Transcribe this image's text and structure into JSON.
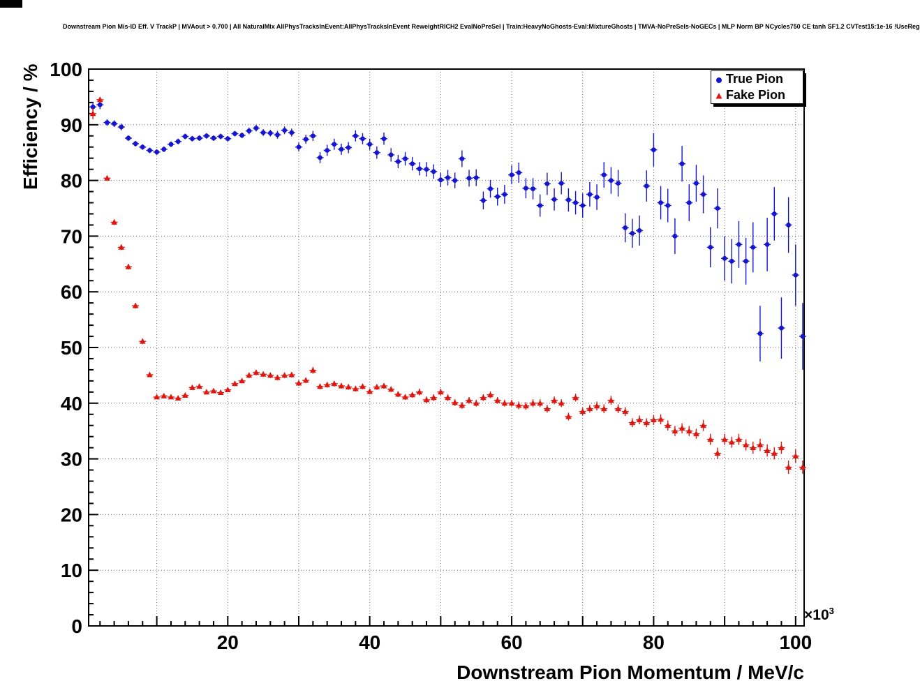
{
  "chart_data": {
    "type": "scatter",
    "title": "Downstream Pion Mis-ID Eff. V TrackP | MVAout > 0.700 | All NaturalMix AllPhysTracksInEvent:AllPhysTracksInEvent ReweightRICH2 EvalNoPreSel | Train:HeavyNoGhosts-Eval:MixtureGhosts | TMVA-NoPreSels-NoGECs | MLP Norm BP NCycles750 CE tanh SF1.2 CVTest15:1e-16 !UseReg",
    "xlabel": "Downstream Pion Momentum / MeV/c",
    "ylabel": "Efficiency / %",
    "x_mult_base": "×10",
    "x_mult_exp": "3",
    "x_units_note": "x axis values are in units of 10^3 MeV/c",
    "xlim": [
      0.4,
      101.2
    ],
    "ylim": [
      0,
      100
    ],
    "xticks": [
      20,
      40,
      60,
      80,
      100
    ],
    "yticks": [
      0,
      10,
      20,
      30,
      40,
      50,
      60,
      70,
      80,
      90,
      100
    ],
    "xgrid": [
      10,
      20,
      30,
      40,
      50,
      60,
      70,
      80,
      90,
      100
    ],
    "ygrid": [
      10,
      20,
      30,
      40,
      50,
      60,
      70,
      80,
      90
    ],
    "grid": "dotted",
    "legend": {
      "position": "top-right",
      "entries": [
        {
          "label": "True Pion",
          "marker": "circle"
        },
        {
          "label": "Fake Pion",
          "marker": "triangle"
        }
      ]
    },
    "series": [
      {
        "name": "True Pion",
        "marker": "circle",
        "color": "#1515cf",
        "points": [
          [
            1,
            93.2,
            0.8
          ],
          [
            2,
            93.6,
            0.8
          ],
          [
            3,
            90.4,
            0.6
          ],
          [
            4,
            90.2,
            0.6
          ],
          [
            5,
            89.6,
            0.6
          ],
          [
            6,
            87.6,
            0.5
          ],
          [
            7,
            86.6,
            0.5
          ],
          [
            8,
            86.0,
            0.5
          ],
          [
            9,
            85.4,
            0.5
          ],
          [
            10,
            85.1,
            0.5
          ],
          [
            11,
            85.6,
            0.5
          ],
          [
            12,
            86.5,
            0.5
          ],
          [
            13,
            87.0,
            0.5
          ],
          [
            14,
            87.9,
            0.5
          ],
          [
            15,
            87.5,
            0.5
          ],
          [
            16,
            87.6,
            0.5
          ],
          [
            17,
            88.0,
            0.5
          ],
          [
            18,
            87.6,
            0.5
          ],
          [
            19,
            87.9,
            0.5
          ],
          [
            20,
            87.5,
            0.5
          ],
          [
            21,
            88.4,
            0.5
          ],
          [
            22,
            88.1,
            0.5
          ],
          [
            23,
            88.9,
            0.6
          ],
          [
            24,
            89.4,
            0.6
          ],
          [
            25,
            88.6,
            0.6
          ],
          [
            26,
            88.5,
            0.6
          ],
          [
            27,
            88.2,
            0.7
          ],
          [
            28,
            89.0,
            0.7
          ],
          [
            29,
            88.6,
            0.7
          ],
          [
            30,
            86.0,
            0.8
          ],
          [
            31,
            87.4,
            0.8
          ],
          [
            32,
            88.0,
            0.9
          ],
          [
            33,
            84.1,
            1.0
          ],
          [
            34,
            85.4,
            1.0
          ],
          [
            35,
            86.5,
            1.0
          ],
          [
            36,
            85.6,
            1.0
          ],
          [
            37,
            85.9,
            1.0
          ],
          [
            38,
            88.0,
            1.0
          ],
          [
            39,
            87.5,
            1.0
          ],
          [
            40,
            86.5,
            1.0
          ],
          [
            41,
            85.0,
            1.1
          ],
          [
            42,
            87.5,
            1.1
          ],
          [
            43,
            84.6,
            1.2
          ],
          [
            44,
            83.4,
            1.2
          ],
          [
            45,
            83.9,
            1.2
          ],
          [
            46,
            83.0,
            1.2
          ],
          [
            47,
            82.1,
            1.2
          ],
          [
            48,
            82.0,
            1.3
          ],
          [
            49,
            81.6,
            1.3
          ],
          [
            50,
            80.1,
            1.3
          ],
          [
            51,
            80.5,
            1.4
          ],
          [
            52,
            80.0,
            1.4
          ],
          [
            53,
            83.9,
            1.5
          ],
          [
            54,
            80.4,
            1.5
          ],
          [
            55,
            80.5,
            1.5
          ],
          [
            56,
            76.4,
            1.6
          ],
          [
            57,
            78.5,
            1.6
          ],
          [
            58,
            77.1,
            1.6
          ],
          [
            59,
            77.5,
            1.7
          ],
          [
            60,
            81.0,
            1.7
          ],
          [
            61,
            81.4,
            1.8
          ],
          [
            62,
            78.6,
            1.8
          ],
          [
            63,
            78.5,
            1.9
          ],
          [
            64,
            75.5,
            2.0
          ],
          [
            65,
            79.4,
            2.0
          ],
          [
            66,
            76.6,
            2.0
          ],
          [
            67,
            79.5,
            2.0
          ],
          [
            68,
            76.5,
            2.1
          ],
          [
            69,
            76.0,
            2.1
          ],
          [
            70,
            75.5,
            2.2
          ],
          [
            71,
            77.5,
            2.2
          ],
          [
            72,
            77.0,
            2.3
          ],
          [
            73,
            81.0,
            2.3
          ],
          [
            74,
            80.0,
            2.4
          ],
          [
            75,
            79.5,
            2.4
          ],
          [
            76,
            71.5,
            2.6
          ],
          [
            77,
            70.5,
            2.6
          ],
          [
            78,
            71.0,
            2.7
          ],
          [
            79,
            79.0,
            2.8
          ],
          [
            80,
            85.5,
            3.0
          ],
          [
            81,
            76.0,
            3.0
          ],
          [
            82,
            75.5,
            3.0
          ],
          [
            83,
            70.0,
            3.2
          ],
          [
            84,
            83.0,
            3.2
          ],
          [
            85,
            76.0,
            3.3
          ],
          [
            86,
            79.5,
            3.3
          ],
          [
            87,
            77.5,
            3.4
          ],
          [
            88,
            68.0,
            3.6
          ],
          [
            89,
            75.0,
            3.6
          ],
          [
            90,
            66.0,
            4.0
          ],
          [
            91,
            65.5,
            4.0
          ],
          [
            92,
            68.5,
            4.2
          ],
          [
            93,
            65.5,
            4.2
          ],
          [
            94,
            68.0,
            4.5
          ],
          [
            95,
            52.5,
            5.0
          ],
          [
            96,
            68.5,
            4.8
          ],
          [
            97,
            74.0,
            4.8
          ],
          [
            98,
            53.5,
            5.5
          ],
          [
            99,
            72.0,
            5.0
          ],
          [
            100,
            63.0,
            5.5
          ],
          [
            101,
            52.0,
            6.0
          ]
        ]
      },
      {
        "name": "Fake Pion",
        "marker": "triangle",
        "color": "#e01710",
        "points": [
          [
            1,
            92.0,
            1.0
          ],
          [
            2,
            94.5,
            0.5
          ],
          [
            3,
            80.4,
            0.5
          ],
          [
            4,
            72.5,
            0.5
          ],
          [
            5,
            68.0,
            0.5
          ],
          [
            6,
            64.5,
            0.5
          ],
          [
            7,
            57.5,
            0.5
          ],
          [
            8,
            51.1,
            0.5
          ],
          [
            9,
            45.1,
            0.4
          ],
          [
            10,
            41.1,
            0.4
          ],
          [
            11,
            41.3,
            0.4
          ],
          [
            12,
            41.1,
            0.4
          ],
          [
            13,
            40.9,
            0.4
          ],
          [
            14,
            41.4,
            0.4
          ],
          [
            15,
            42.8,
            0.4
          ],
          [
            16,
            43.0,
            0.4
          ],
          [
            17,
            42.0,
            0.4
          ],
          [
            18,
            42.2,
            0.4
          ],
          [
            19,
            41.9,
            0.4
          ],
          [
            20,
            42.4,
            0.4
          ],
          [
            21,
            43.5,
            0.4
          ],
          [
            22,
            44.0,
            0.4
          ],
          [
            23,
            45.0,
            0.5
          ],
          [
            24,
            45.5,
            0.5
          ],
          [
            25,
            45.2,
            0.5
          ],
          [
            26,
            45.0,
            0.5
          ],
          [
            27,
            44.6,
            0.5
          ],
          [
            28,
            45.0,
            0.5
          ],
          [
            29,
            45.1,
            0.5
          ],
          [
            30,
            43.6,
            0.5
          ],
          [
            31,
            44.1,
            0.5
          ],
          [
            32,
            45.9,
            0.6
          ],
          [
            33,
            43.0,
            0.5
          ],
          [
            34,
            43.3,
            0.5
          ],
          [
            35,
            43.5,
            0.5
          ],
          [
            36,
            43.1,
            0.5
          ],
          [
            37,
            42.9,
            0.5
          ],
          [
            38,
            42.6,
            0.5
          ],
          [
            39,
            43.0,
            0.5
          ],
          [
            40,
            42.1,
            0.5
          ],
          [
            41,
            42.9,
            0.5
          ],
          [
            42,
            43.1,
            0.5
          ],
          [
            43,
            42.5,
            0.5
          ],
          [
            44,
            41.6,
            0.5
          ],
          [
            45,
            41.1,
            0.5
          ],
          [
            46,
            41.5,
            0.5
          ],
          [
            47,
            42.0,
            0.6
          ],
          [
            48,
            40.6,
            0.6
          ],
          [
            49,
            41.0,
            0.6
          ],
          [
            50,
            42.0,
            0.6
          ],
          [
            51,
            41.0,
            0.6
          ],
          [
            52,
            40.1,
            0.6
          ],
          [
            53,
            39.6,
            0.6
          ],
          [
            54,
            40.5,
            0.6
          ],
          [
            55,
            40.0,
            0.6
          ],
          [
            56,
            41.0,
            0.6
          ],
          [
            57,
            41.5,
            0.6
          ],
          [
            58,
            40.5,
            0.6
          ],
          [
            59,
            40.0,
            0.6
          ],
          [
            60,
            40.0,
            0.6
          ],
          [
            61,
            39.6,
            0.7
          ],
          [
            62,
            39.5,
            0.7
          ],
          [
            63,
            40.0,
            0.7
          ],
          [
            64,
            40.0,
            0.7
          ],
          [
            65,
            39.0,
            0.7
          ],
          [
            66,
            40.5,
            0.7
          ],
          [
            67,
            40.0,
            0.7
          ],
          [
            68,
            37.6,
            0.7
          ],
          [
            69,
            41.0,
            0.7
          ],
          [
            70,
            38.5,
            0.7
          ],
          [
            71,
            39.0,
            0.7
          ],
          [
            72,
            39.5,
            0.8
          ],
          [
            73,
            39.0,
            0.8
          ],
          [
            74,
            40.5,
            0.8
          ],
          [
            75,
            39.0,
            0.8
          ],
          [
            76,
            38.5,
            0.8
          ],
          [
            77,
            36.5,
            0.8
          ],
          [
            78,
            37.0,
            0.8
          ],
          [
            79,
            36.5,
            0.8
          ],
          [
            80,
            37.0,
            0.9
          ],
          [
            81,
            37.1,
            0.9
          ],
          [
            82,
            36.0,
            0.9
          ],
          [
            83,
            35.0,
            0.9
          ],
          [
            84,
            35.5,
            0.9
          ],
          [
            85,
            35.0,
            0.9
          ],
          [
            86,
            34.5,
            0.9
          ],
          [
            87,
            36.0,
            1.0
          ],
          [
            88,
            33.5,
            1.0
          ],
          [
            89,
            31.0,
            1.0
          ],
          [
            90,
            33.5,
            1.0
          ],
          [
            91,
            33.0,
            1.0
          ],
          [
            92,
            33.5,
            1.0
          ],
          [
            93,
            32.5,
            1.0
          ],
          [
            94,
            32.0,
            1.1
          ],
          [
            95,
            32.5,
            1.1
          ],
          [
            96,
            31.5,
            1.1
          ],
          [
            97,
            31.0,
            1.1
          ],
          [
            98,
            32.0,
            1.1
          ],
          [
            99,
            28.5,
            1.2
          ],
          [
            100,
            30.5,
            1.2
          ],
          [
            101,
            28.5,
            1.2
          ]
        ]
      }
    ]
  }
}
